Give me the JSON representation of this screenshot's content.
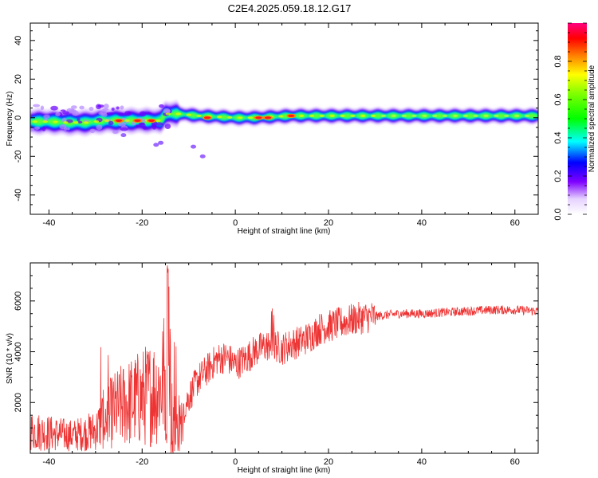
{
  "title": "C2E4.2025.059.18.12.G17",
  "chart_data": [
    {
      "type": "heatmap",
      "xlabel": "Height of straight line (km)",
      "ylabel": "Frequency (Hz)",
      "xlim": [
        -44,
        65
      ],
      "ylim": [
        -50,
        49
      ],
      "xticks": [
        -40,
        -20,
        0,
        20,
        40,
        60
      ],
      "yticks": [
        -40,
        -20,
        0,
        20,
        40
      ],
      "colorbar": {
        "label": "Normalized spectral amplitude",
        "range": [
          0,
          1
        ],
        "ticks": [
          "0.0",
          "0.2",
          "0.4",
          "0.6",
          "0.8"
        ],
        "tick_values": [
          0,
          0.2,
          0.4,
          0.6,
          0.8
        ]
      },
      "ridge": {
        "x": [
          -44,
          -40,
          -36,
          -32,
          -28,
          -24,
          -20,
          -16,
          -15,
          -12,
          -8,
          -4,
          0,
          4,
          8,
          12,
          16,
          20,
          30,
          40,
          50,
          60,
          65
        ],
        "freq": [
          -2,
          -2,
          -2.5,
          -2.5,
          -1.5,
          -1.5,
          -1.5,
          -1.5,
          2,
          2,
          1,
          0.5,
          0,
          0,
          0.5,
          1,
          1,
          1,
          1,
          1,
          1,
          1,
          1
        ]
      },
      "hot_spots": [
        {
          "x": -25,
          "freq": -1.5
        },
        {
          "x": -21,
          "freq": -1.5
        },
        {
          "x": -18,
          "freq": -1.5
        },
        {
          "x": -6,
          "freq": 0
        },
        {
          "x": 5,
          "freq": 0
        },
        {
          "x": 7,
          "freq": 0
        },
        {
          "x": 12,
          "freq": 1
        }
      ]
    },
    {
      "type": "line",
      "xlabel": "Height of straight line (km)",
      "ylabel": "SNR (10 * v/v)",
      "xlim": [
        -44,
        65
      ],
      "ylim": [
        0,
        7500
      ],
      "xticks": [
        -40,
        -20,
        0,
        20,
        40,
        60
      ],
      "yticks": [
        2000,
        4000,
        6000
      ],
      "color": "#ee3333",
      "envelope": {
        "x": [
          -44,
          -40,
          -35,
          -30,
          -28,
          -26,
          -24,
          -20,
          -18,
          -16,
          -15,
          -14,
          -13,
          -12,
          -10,
          -8,
          -6,
          -4,
          -2,
          0,
          2,
          4,
          6,
          8,
          10,
          12,
          14,
          16,
          18,
          20,
          22,
          24,
          26,
          30,
          35,
          40,
          45,
          50,
          55,
          60,
          65
        ],
        "y": [
          900,
          800,
          700,
          900,
          1400,
          1700,
          1900,
          2200,
          2400,
          2600,
          3200,
          3500,
          2600,
          1400,
          2200,
          2900,
          3300,
          3700,
          3800,
          3500,
          3700,
          4000,
          4200,
          4300,
          4100,
          4300,
          4400,
          4600,
          4900,
          5000,
          5100,
          5200,
          5300,
          5400,
          5500,
          5500,
          5550,
          5600,
          5650,
          5650,
          5600
        ]
      }
    }
  ]
}
